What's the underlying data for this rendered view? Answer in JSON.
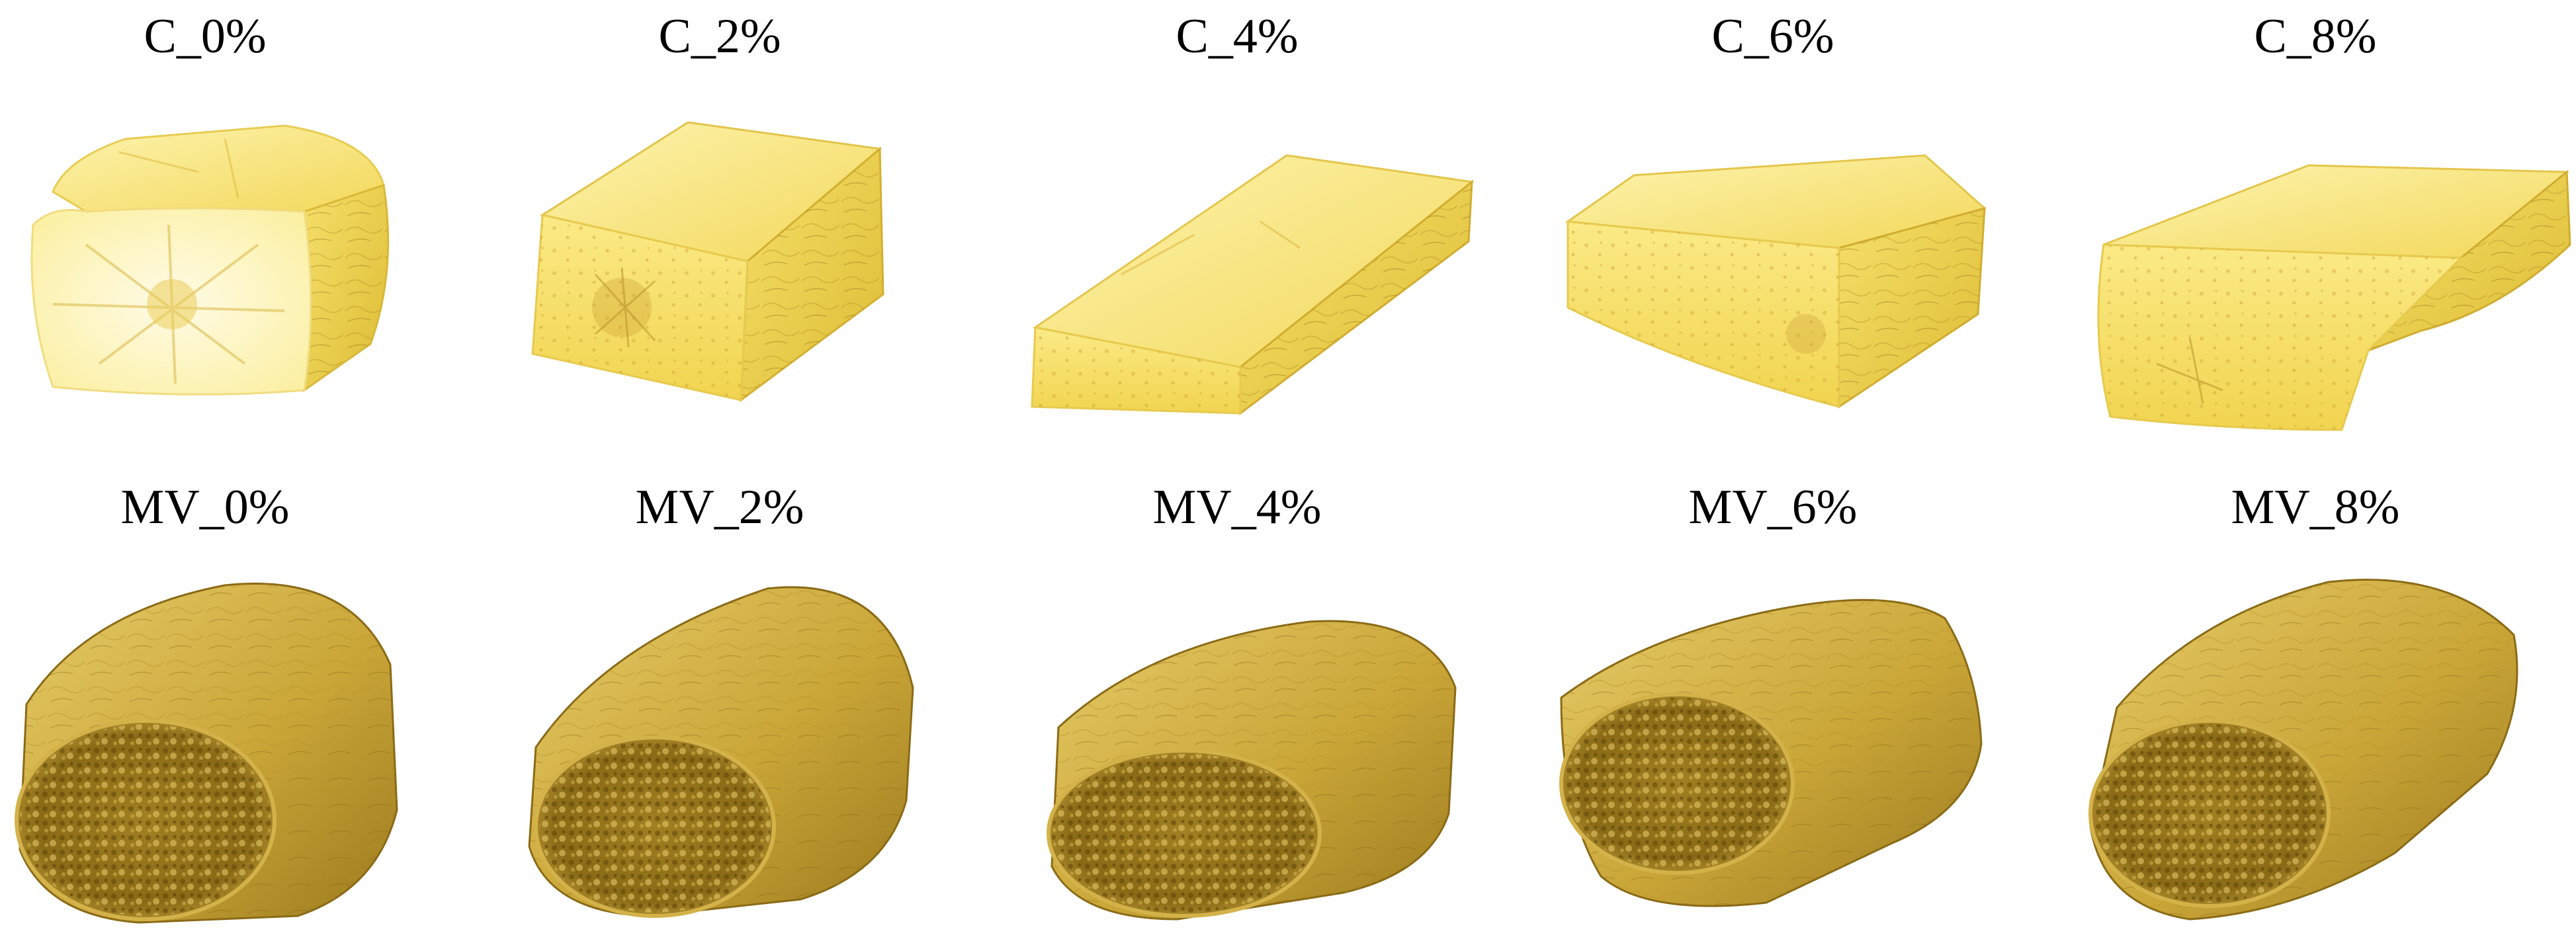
{
  "rows": [
    {
      "name": "C",
      "samples": [
        {
          "label": "C_0%"
        },
        {
          "label": "C_2%"
        },
        {
          "label": "C_4%"
        },
        {
          "label": "C_6%"
        },
        {
          "label": "C_8%"
        }
      ]
    },
    {
      "name": "MV",
      "samples": [
        {
          "label": "MV_0%"
        },
        {
          "label": "MV_2%"
        },
        {
          "label": "MV_4%"
        },
        {
          "label": "MV_6%"
        },
        {
          "label": "MV_8%"
        }
      ]
    }
  ],
  "colors": {
    "c_light": "#fbf0a0",
    "c_mid": "#f4dc5a",
    "c_dark": "#d9b428",
    "mv_light": "#e9cf6a",
    "mv_mid": "#caa233",
    "mv_dark": "#6e5310"
  }
}
